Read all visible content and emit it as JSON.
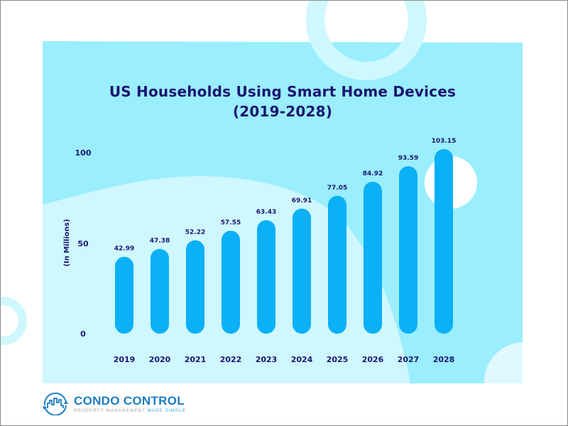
{
  "colors": {
    "panel": "#9aeefd",
    "panel_light": "#cff7fe",
    "bar": "#0bb0f7",
    "text": "#1a1670",
    "logo_blue": "#1d7dc1",
    "logo_gray": "#9aa4ad",
    "white": "#ffffff"
  },
  "chart_data": {
    "type": "bar",
    "title": "US Households Using Smart Home Devices",
    "subtitle": "(2019-2028)",
    "xlabel": "",
    "ylabel": "(In Millions)",
    "categories": [
      "2019",
      "2020",
      "2021",
      "2022",
      "2023",
      "2024",
      "2025",
      "2026",
      "2027",
      "2028"
    ],
    "values": [
      42.99,
      47.38,
      52.22,
      57.55,
      63.43,
      69.91,
      77.05,
      84.92,
      93.59,
      103.15
    ],
    "value_labels": [
      "42.99",
      "47.38",
      "52.22",
      "57.55",
      "63.43",
      "69.91",
      "77.05",
      "84.92",
      "93.59",
      "103.15"
    ],
    "yticks": [
      0,
      50,
      100
    ],
    "ytick_labels": [
      "0",
      "50",
      "100"
    ],
    "ylim": [
      0,
      105
    ],
    "grid": false,
    "legend": "none",
    "bar_style": "rounded"
  },
  "logo": {
    "name": "CONDO CONTROL",
    "tagline_part1": "PROPERTY MANAGEMENT",
    "tagline_part2": "MADE SIMPLE",
    "icon": "city-skyline-cycle-icon"
  }
}
